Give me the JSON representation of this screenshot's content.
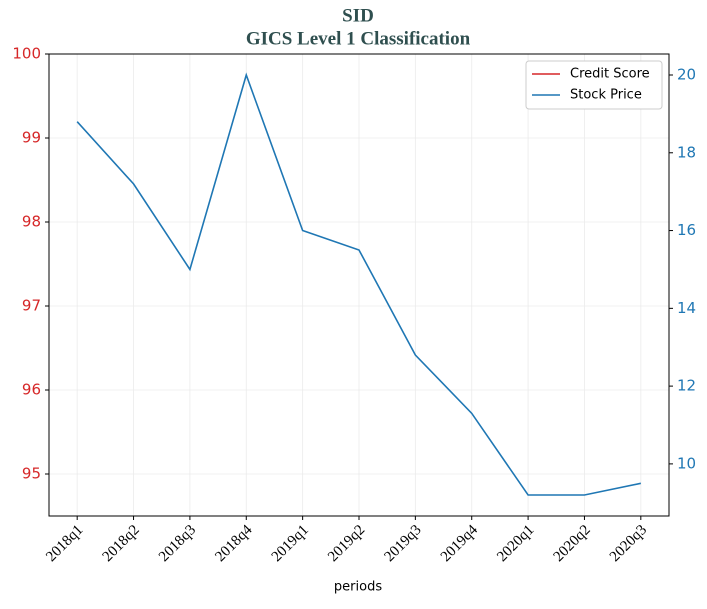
{
  "chart_data": {
    "type": "line",
    "title": "SID",
    "subtitle": "GICS Level 1 Classification",
    "xlabel": "periods",
    "categories": [
      "2018q1",
      "2018q2",
      "2018q3",
      "2018q4",
      "2019q1",
      "2019q2",
      "2019q3",
      "2019q4",
      "2020q1",
      "2020q2",
      "2020q3"
    ],
    "series": [
      {
        "name": "Credit Score",
        "color": "#d62728",
        "values": [
          null,
          null,
          null,
          null,
          null,
          null,
          null,
          null,
          null,
          null,
          null
        ]
      },
      {
        "name": "Stock Price",
        "color": "#1f77b4",
        "axis": "y2",
        "values": [
          18.8,
          17.2,
          15.0,
          20.0,
          16.0,
          15.5,
          12.8,
          11.3,
          9.2,
          9.2,
          9.5
        ]
      }
    ],
    "ylim": [
      94.5,
      100
    ],
    "yticks": [
      95,
      96,
      97,
      98,
      99,
      100
    ],
    "y2lim": [
      8.66,
      20.54
    ],
    "y2ticks": [
      10,
      12,
      14,
      16,
      18,
      20
    ],
    "grid": true,
    "legend": "upper right"
  }
}
